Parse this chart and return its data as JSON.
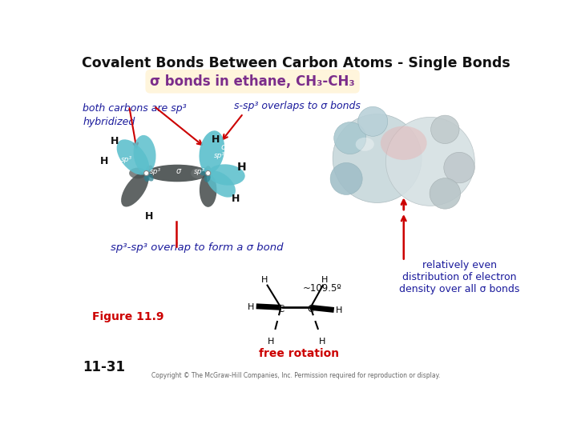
{
  "title": "Covalent Bonds Between Carbon Atoms - Single Bonds",
  "subtitle": "σ bonds in ethane, CH₃-CH₃",
  "subtitle_bg": "#FFF5DC",
  "subtitle_color": "#7B2D8B",
  "label_both_carbons": "both carbons are sp³\nhybridized",
  "label_s_sp3": "s-sp³ overlaps to σ bonds",
  "label_sp3_overlap": "sp³-sp³ overlap to form a σ bond",
  "label_angle": "~109.5º",
  "label_free_rotation": "free rotation",
  "label_figure": "Figure 11.9",
  "label_relatively_even": "relatively even\ndistribution of electron\ndensity over all σ bonds",
  "label_11_31": "11-31",
  "copyright": "Copyright © The McGraw-Hill Companies, Inc. Permission required for reproduction or display.",
  "text_color_blue": "#1A1A9C",
  "text_color_purple": "#7B2D8B",
  "text_color_red": "#CC0000",
  "text_color_black": "#111111",
  "bg_color": "#FFFFFF",
  "teal_light": "#5BBFCC",
  "teal_mid": "#4AABB8",
  "teal_dark": "#2E8090",
  "gray_dark": "#4A5050",
  "gray_mid": "#6A7070",
  "gray_light": "#909898"
}
